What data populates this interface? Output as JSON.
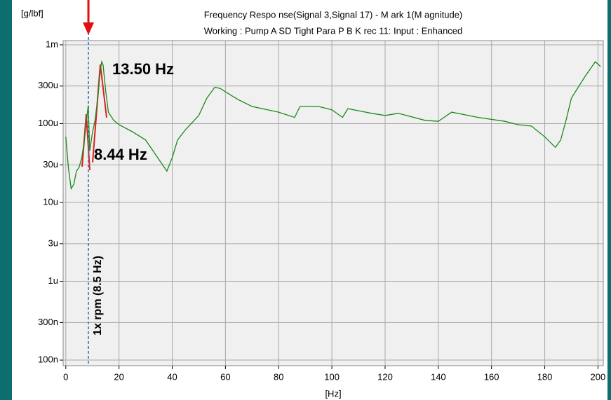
{
  "chart_data": {
    "type": "line",
    "title": "Frequency Respo nse(Signal 3,Signal 17) - M ark 1(M agnitude)",
    "subtitle": "Working : Pump A  SD  Tight Para P B K rec  11: Input : Enhanced",
    "x_label": "[Hz]",
    "y_label": "[g/lbf]",
    "log_y": true,
    "grid": true,
    "xlim": [
      -1,
      202
    ],
    "ylim": [
      8.5e-08,
      0.00113
    ],
    "xticks": [
      0,
      20,
      40,
      60,
      80,
      100,
      120,
      140,
      160,
      180,
      200
    ],
    "yticks": [
      {
        "value": 0.001,
        "label": "1m"
      },
      {
        "value": 0.0003,
        "label": "300u"
      },
      {
        "value": 0.0001,
        "label": "100u"
      },
      {
        "value": 3e-05,
        "label": "30u"
      },
      {
        "value": 1e-05,
        "label": "10u"
      },
      {
        "value": 3e-06,
        "label": "3u"
      },
      {
        "value": 1e-06,
        "label": "1u"
      },
      {
        "value": 3e-07,
        "label": "300n"
      },
      {
        "value": 1e-07,
        "label": "100n"
      }
    ],
    "annotations": [
      "13.50 Hz",
      "8.44 Hz",
      "1x rpm (8.5 Hz)"
    ],
    "rpm_marker": 8.5,
    "x": [
      0,
      1,
      2,
      3,
      4,
      5,
      6,
      7,
      8,
      8.44,
      9,
      10,
      11,
      12,
      13,
      13.5,
      14,
      15,
      16,
      18,
      20,
      25,
      30,
      35,
      38,
      40,
      42,
      45,
      50,
      53,
      56,
      58,
      62,
      65,
      70,
      80,
      86,
      88,
      95,
      100,
      104,
      106,
      115,
      120,
      125,
      135,
      140,
      145,
      155,
      165,
      170,
      175,
      180,
      184,
      186,
      188,
      190,
      195,
      199,
      201
    ],
    "series": [
      {
        "name": "FRF",
        "color": "#1a8a1a",
        "values": [
          6.8e-05,
          2.7e-05,
          1.5e-05,
          1.7e-05,
          2.5e-05,
          2.8e-05,
          3.7e-05,
          6.2e-05,
          0.000127,
          0.00017,
          4.5e-05,
          7.6e-05,
          0.00011,
          0.00021,
          0.00048,
          0.00061,
          0.00056,
          0.00026,
          0.00014,
          0.00011,
          9.7e-05,
          7.9e-05,
          6.2e-05,
          3.5e-05,
          2.5e-05,
          3.7e-05,
          6.2e-05,
          8.4e-05,
          0.000127,
          0.00021,
          0.00029,
          0.00028,
          0.00023,
          0.0002,
          0.000165,
          0.00014,
          0.00012,
          0.000165,
          0.000165,
          0.00015,
          0.00012,
          0.000155,
          0.000135,
          0.000127,
          0.000135,
          0.00011,
          0.000107,
          0.00014,
          0.00012,
          0.000107,
          9.7e-05,
          9.3e-05,
          6.8e-05,
          5e-05,
          6.2e-05,
          0.00011,
          0.00021,
          0.00039,
          0.00061,
          0.00053
        ]
      }
    ]
  }
}
